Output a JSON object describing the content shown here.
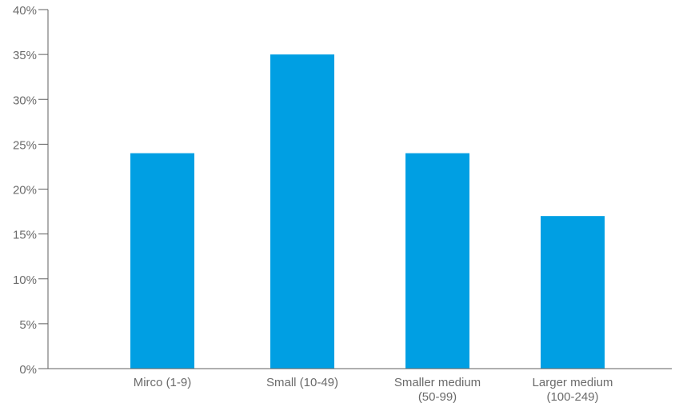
{
  "chart_data": {
    "type": "bar",
    "categories": [
      [
        "Mirco (1-9)"
      ],
      [
        "Small (10-49)"
      ],
      [
        "Smaller medium",
        "(50-99)"
      ],
      [
        "Larger medium",
        "(100-249)"
      ]
    ],
    "values": [
      24,
      35,
      24,
      17
    ],
    "ylim": [
      0,
      40
    ],
    "yticks": [
      0,
      5,
      10,
      15,
      20,
      25,
      30,
      35,
      40
    ],
    "ytick_suffix": "%",
    "bar_color": "#009fe3",
    "axis_color": "#5f5f5f",
    "grid": false,
    "legend": "none"
  }
}
